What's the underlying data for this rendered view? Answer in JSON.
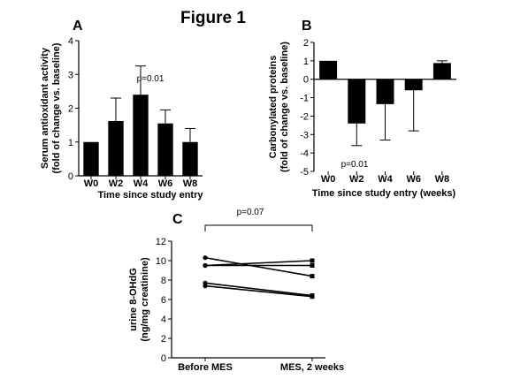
{
  "figure_title": "Figure 1",
  "chart_data": [
    {
      "panel": "A",
      "type": "bar",
      "categories": [
        "W0",
        "W2",
        "W4",
        "W6",
        "W8"
      ],
      "values": [
        1.0,
        1.62,
        2.4,
        1.55,
        1.0
      ],
      "error_up": [
        0.0,
        0.68,
        0.85,
        0.4,
        0.4
      ],
      "xlabel": "Time since study entry",
      "ylabel": "Serum antioxidant activity (fold of change vs. baseline)",
      "ylim": [
        0,
        4
      ],
      "yticks": [
        "0",
        "1",
        "2",
        "3",
        "4"
      ],
      "annotation": "p=0.01",
      "grid": false
    },
    {
      "panel": "B",
      "type": "bar",
      "categories": [
        "W0",
        "W2",
        "W4",
        "W6",
        "W8"
      ],
      "values": [
        1.0,
        -2.4,
        -1.35,
        -0.6,
        0.88
      ],
      "error": [
        0.0,
        1.2,
        1.95,
        2.2,
        0.12
      ],
      "xlabel": "Time since study entry (weeks)",
      "ylabel": "Carbonylated proteins (fold of change vs. baseline)",
      "ylim": [
        -5,
        2
      ],
      "yticks": [
        "2",
        "1",
        "0",
        "-1",
        "-2",
        "-3",
        "-4",
        "-5"
      ],
      "annotation": "p=0.01",
      "grid": false
    },
    {
      "panel": "C",
      "type": "line",
      "categories": [
        "Before MES",
        "MES, 2 weeks"
      ],
      "series": [
        {
          "values": [
            10.3,
            8.4
          ]
        },
        {
          "values": [
            9.5,
            10.0
          ]
        },
        {
          "values": [
            9.5,
            9.5
          ]
        },
        {
          "values": [
            7.7,
            6.4
          ]
        },
        {
          "values": [
            7.4,
            6.3
          ]
        }
      ],
      "ylabel": "urine 8-OHdG (ng/mg creatinine)",
      "ylim": [
        0,
        12
      ],
      "yticks": [
        "0",
        "2",
        "4",
        "6",
        "8",
        "10",
        "12"
      ],
      "annotation": "p=0.07",
      "grid": false
    }
  ]
}
